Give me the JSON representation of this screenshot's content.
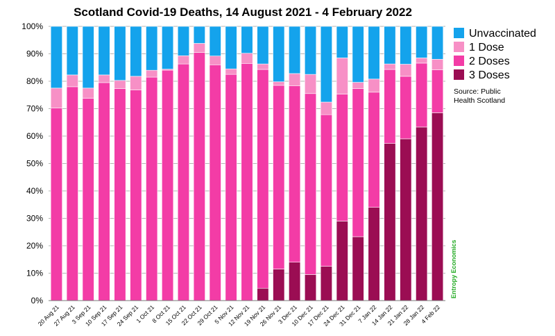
{
  "chart_data": {
    "type": "bar",
    "stacked": true,
    "title": "Scotland Covid-19 Deaths, 14 August 2021 - 4 February 2022",
    "xlabel": "",
    "ylabel": "",
    "ylim": [
      0,
      100
    ],
    "yticks": [
      "0%",
      "10%",
      "20%",
      "30%",
      "40%",
      "50%",
      "60%",
      "70%",
      "80%",
      "90%",
      "100%"
    ],
    "categories": [
      "20 Aug 21",
      "27 Aug 21",
      "3 Sep 21",
      "10 Sep 21",
      "17 Sep 21",
      "24 Sep 21",
      "1 Oct 21",
      "8 Oct 21",
      "15 Oct 21",
      "22 Oct 21",
      "29 Oct 21",
      "5 Nov 21",
      "12 Nov 21",
      "19 Nov 21",
      "26 Nov 21",
      "3 Dec 21",
      "10 Dec 21",
      "17 Dec 21",
      "24 Dec 21",
      "31 Dec 21",
      "7 Jan 22",
      "14 Jan 22",
      "21 Jan 22",
      "28 Jan 22",
      "4 Feb 22"
    ],
    "series": [
      {
        "name": "3 Doses",
        "color": "#9b0d53",
        "values": [
          0,
          0,
          0,
          0,
          0,
          0,
          0,
          0,
          0,
          0,
          0,
          0,
          0,
          4.5,
          11.5,
          14,
          9.5,
          12.5,
          29,
          23.3,
          34,
          57.3,
          59,
          63.3,
          68.5
        ]
      },
      {
        "name": "2 Doses",
        "color": "#f33ca6",
        "values": [
          70.2,
          78,
          73.8,
          79.5,
          77.3,
          76.8,
          81.5,
          84,
          86.3,
          90.5,
          86,
          82.5,
          86.5,
          79.8,
          67,
          64.3,
          66,
          55.3,
          46.3,
          54,
          42,
          27,
          22.8,
          23.3,
          15.7
        ]
      },
      {
        "name": "1 Dose",
        "color": "#f790c6",
        "values": [
          7.3,
          4.3,
          3.7,
          2.8,
          3,
          5,
          2.5,
          0.4,
          3,
          3.3,
          3.2,
          2,
          3.7,
          2,
          1.3,
          4.5,
          7,
          4.6,
          13.2,
          2.3,
          4.8,
          2,
          4.4,
          1.9,
          3.8
        ]
      },
      {
        "name": "Unvaccinated",
        "color": "#14a3ec",
        "values": [
          22.5,
          17.7,
          22.5,
          17.7,
          19.7,
          18.2,
          16,
          15.6,
          10.7,
          6.2,
          10.8,
          15.5,
          9.8,
          13.7,
          20.2,
          17.2,
          17.5,
          27.6,
          11.5,
          20.4,
          19.2,
          13.7,
          13.8,
          11.5,
          12
        ]
      }
    ],
    "legend": {
      "position": "right",
      "items": [
        "Unvaccinated",
        "1 Dose",
        "2 Doses",
        "3 Doses"
      ],
      "source": [
        "Source: Public",
        "Health Scotland"
      ]
    },
    "credit": "Entropy Economics"
  }
}
